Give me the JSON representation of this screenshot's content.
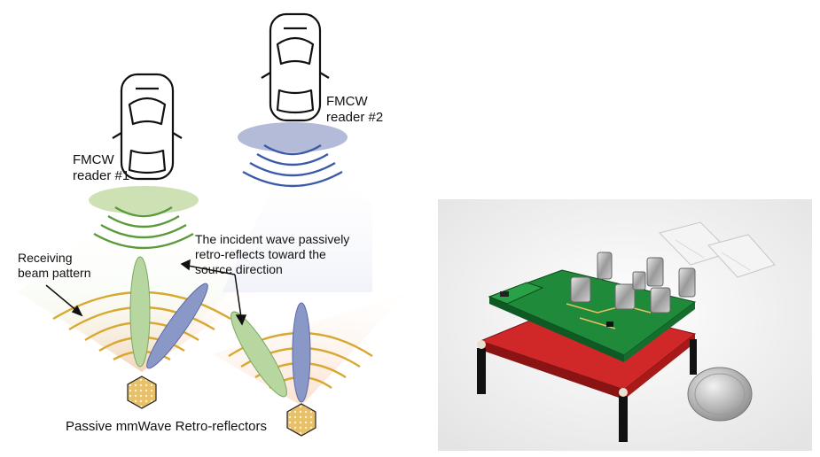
{
  "labels": {
    "reader1": "FMCW\nreader #1",
    "reader2": "FMCW\nreader #2",
    "receiving": "Receiving\nbeam pattern",
    "incident": "The incident wave passively\nretro-reflects toward the\nsource direction",
    "footer": "Passive mmWave Retro-reflectors"
  },
  "colors": {
    "reader1_wave": "#5a9a3a",
    "reader1_beam": "#b8d6a0",
    "reader2_wave": "#3a5aa8",
    "reader2_beam": "#8a98c8",
    "receive_arc": "#d8a830",
    "cone_fill": "#f5c8a8",
    "hexagon": "#e8c878",
    "pcb_green": "#1e8a3a",
    "pcb_red": "#d42a2a"
  },
  "photo": {
    "subject": "prototype retro-reflector board with SMA connectors, antennas and a coin for scale"
  }
}
